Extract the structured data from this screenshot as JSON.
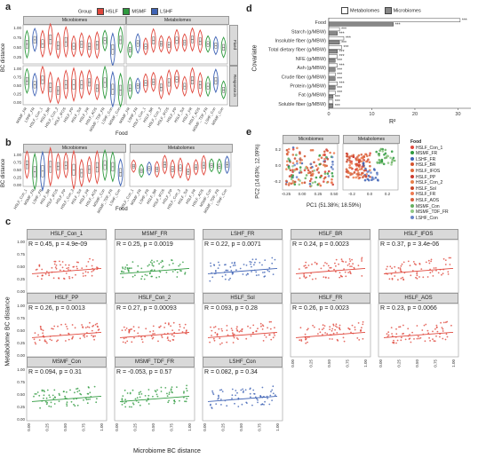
{
  "panel_labels": {
    "a": "a",
    "b": "b",
    "c": "c",
    "d": "d",
    "e": "e"
  },
  "colors": {
    "HSLF": "#e0473c",
    "MSMF": "#2e9a3e",
    "LSHF": "#3f63b5",
    "strip": "#d9d9d9",
    "bar": "#888888"
  },
  "panel_a": {
    "legend_title": "Group",
    "legend": [
      "HSLF",
      "MSMF",
      "LSHF"
    ],
    "ylabel": "BC distance",
    "col_strips": [
      "Microbiomes",
      "Metabolomes"
    ],
    "row_strips": [
      "Fixed",
      "Response.in"
    ],
    "yticks": [
      "1.00",
      "0.75",
      "0.50",
      "0.25"
    ],
    "yticks2": [
      "1.00",
      "0.75",
      "0.50",
      "0.25",
      "0.00"
    ],
    "xticks_micro": [
      "MSMF_FR",
      "LSHF_FR",
      "HSLF_Con_1",
      "HSLF_BR",
      "HSLF_Con_2",
      "HSLF_IFOS",
      "HSLF_PP",
      "HSLF_Sol",
      "HSLF_FR",
      "HSLF_AOS",
      "MSMF_TDF_FR",
      "LSHF_Con",
      "MSMF_Con"
    ],
    "xticks_meta": [
      "MSMF_FR",
      "LSHF_FR",
      "HSLF_Con_1",
      "HSLF_BR",
      "HSLF_Con_2",
      "HSLF_IFOS",
      "HSLF_PP",
      "HSLF_Sol",
      "HSLF_FR",
      "HSLF_AOS",
      "MSMF_TDF_FR",
      "LSHF_Con",
      "MSMF_Con"
    ],
    "xlabel": "Food"
  },
  "panel_b": {
    "ylabel": "BC distance",
    "col_strips": [
      "Microbiomes",
      "Metabolomes"
    ],
    "yticks": [
      "1.00",
      "0.75",
      "0.50",
      "0.25",
      "0.00"
    ],
    "xticks_micro": [
      "HSLF_Con_1",
      "MSMF_FR",
      "LSHF_FR",
      "HSLF_BR",
      "HSLF_IFOS",
      "HSLF_PP",
      "HSLF_Con_2",
      "HSLF_Sol",
      "HSLF_FR",
      "HSLF_AOS",
      "MSMF_Con",
      "MSMF_TDF_FR",
      "LSHF_Con"
    ],
    "xticks_meta": [
      "HSLF_Con_1",
      "MSMF_FR",
      "LSHF_FR",
      "HSLF_BR",
      "HSLF_IFOS",
      "HSLF_PP",
      "HSLF_Con_2",
      "HSLF_Sol",
      "HSLF_FR",
      "HSLF_AOS",
      "MSMF_Con",
      "MSMF_TDF_FR",
      "LSHF_Con"
    ],
    "xlabel": "Food"
  },
  "panel_c": {
    "ylabel": "Metabolome BC distance",
    "xlabel": "Microbiome BC distance",
    "yticks": [
      "1.00",
      "0.75",
      "0.50",
      "0.25",
      "0.00"
    ],
    "xticks": [
      "0.00",
      "0.25",
      "0.50",
      "0.75",
      "1.00"
    ],
    "facets": [
      {
        "title": "HSLF_Con_1",
        "stat": "R = 0.45, p = 4.9e-09",
        "group": "HSLF"
      },
      {
        "title": "MSMF_FR",
        "stat": "R = 0.25, p = 0.0019",
        "group": "MSMF"
      },
      {
        "title": "LSHF_FR",
        "stat": "R = 0.22, p = 0.0071",
        "group": "LSHF"
      },
      {
        "title": "HSLF_BR",
        "stat": "R = 0.24, p = 0.0023",
        "group": "HSLF"
      },
      {
        "title": "HSLF_IFOS",
        "stat": "R = 0.37, p = 3.4e-06",
        "group": "HSLF"
      },
      {
        "title": "HSLF_PP",
        "stat": "R = 0.26, p = 0.0013",
        "group": "HSLF"
      },
      {
        "title": "HSLF_Con_2",
        "stat": "R = 0.27, p = 0.00093",
        "group": "HSLF"
      },
      {
        "title": "HSLF_Sol",
        "stat": "R = 0.093, p = 0.28",
        "group": "HSLF"
      },
      {
        "title": "HSLF_FR",
        "stat": "R = 0.26, p = 0.0023",
        "group": "HSLF"
      },
      {
        "title": "HSLF_AOS",
        "stat": "R = 0.23, p = 0.0066",
        "group": "HSLF"
      },
      {
        "title": "MSMF_Con",
        "stat": "R = 0.094, p = 0.31",
        "group": "MSMF"
      },
      {
        "title": "MSMF_TDF_FR",
        "stat": "R = -0.053, p = 0.57",
        "group": "MSMF"
      },
      {
        "title": "LSHF_Con",
        "stat": "R = 0.082, p = 0.34",
        "group": "LSHF"
      }
    ]
  },
  "panel_d": {
    "legend": [
      "Metabolomes",
      "Microbiomes"
    ],
    "ylabel": "Covariate",
    "xlabel": "R²",
    "xticks": [
      "0",
      "10",
      "20",
      "30"
    ],
    "categories": [
      "Food",
      "Starch (g/MBW)",
      "Insoluble fiber (g/MBW)",
      "Total dietary fiber (g/MBW)",
      "NFE (g/MBW)",
      "Ash (g/MBW)",
      "Crude fiber (g/MBW)",
      "Protein (g/MBW)",
      "Fat (g/MBW)",
      "Soluble fiber (g/MBW)"
    ],
    "sig": "***"
  },
  "panel_e": {
    "col_strips": [
      "Microbiomes",
      "Metabolomes"
    ],
    "xlabel": "PC1 (51.38%; 18.59%)",
    "ylabel": "PC2 (14.63%; 12.09%)",
    "yticks": [
      "0.2",
      "0.0",
      "-0.2"
    ],
    "xticks_micro": [
      "-0.25",
      "0.00",
      "0.25",
      "0.50"
    ],
    "xticks_meta": [
      "-0.2",
      "0.0",
      "0.2"
    ],
    "legend_title": "Food",
    "legend": [
      {
        "name": "HSLF_Con_1",
        "color": "#e0473c"
      },
      {
        "name": "MSMF_FR",
        "color": "#2e9a3e"
      },
      {
        "name": "LSHF_FR",
        "color": "#3f63b5"
      },
      {
        "name": "HSLF_BR",
        "color": "#d5542f"
      },
      {
        "name": "HSLF_IFOS",
        "color": "#e06a3d"
      },
      {
        "name": "HSLF_PP",
        "color": "#cc3b2f"
      },
      {
        "name": "HSLF_Con_2",
        "color": "#e7804b"
      },
      {
        "name": "HSLF_Sol",
        "color": "#c9472a"
      },
      {
        "name": "HSLF_FR",
        "color": "#ee7a52"
      },
      {
        "name": "HSLF_AOS",
        "color": "#d8613f"
      },
      {
        "name": "MSMF_Con",
        "color": "#66b060"
      },
      {
        "name": "MSMF_TDF_FR",
        "color": "#8fc885"
      },
      {
        "name": "LSHF_Con",
        "color": "#6a86c8"
      }
    ]
  },
  "chart_data": [
    {
      "type": "bar",
      "title": "",
      "xlabel": "R²",
      "ylabel": "Covariate",
      "categories": [
        "Food",
        "Starch (g/MBW)",
        "Insoluble fiber (g/MBW)",
        "Total dietary fiber (g/MBW)",
        "NFE (g/MBW)",
        "Ash (g/MBW)",
        "Crude fiber (g/MBW)",
        "Protein (g/MBW)",
        "Fat (g/MBW)",
        "Soluble fiber (g/MBW)"
      ],
      "series": [
        {
          "name": "Metabolomes",
          "values": [
            30.5,
            2.5,
            3.5,
            3.0,
            2.0,
            2.0,
            1.5,
            2.0,
            1.5,
            1.0
          ]
        },
        {
          "name": "Microbiomes",
          "values": [
            15.0,
            2.0,
            2.5,
            2.0,
            1.5,
            1.5,
            1.5,
            1.5,
            1.0,
            1.0
          ]
        }
      ],
      "xlim": [
        0,
        33
      ]
    }
  ]
}
